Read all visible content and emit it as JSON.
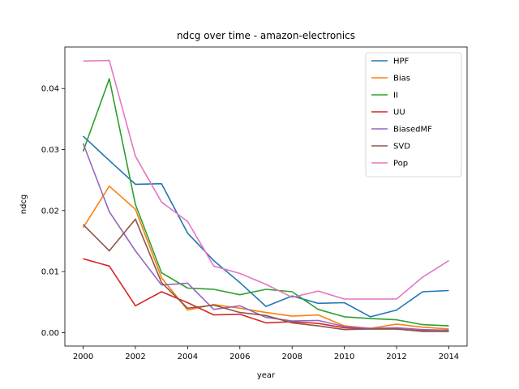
{
  "chart_data": {
    "type": "line",
    "title": "ndcg over time - amazon-electronics",
    "xlabel": "year",
    "ylabel": "ndcg",
    "x": [
      2000,
      2001,
      2002,
      2003,
      2004,
      2005,
      2006,
      2007,
      2008,
      2009,
      2010,
      2011,
      2012,
      2013,
      2014
    ],
    "xlim": [
      1999.3,
      2014.7
    ],
    "ylim": [
      -0.0022,
      0.0468
    ],
    "xticks": [
      2000,
      2002,
      2004,
      2006,
      2008,
      2010,
      2012,
      2014
    ],
    "yticks": [
      "0.00",
      "0.01",
      "0.02",
      "0.03",
      "0.04"
    ],
    "grid": false,
    "legend_position": "top-right",
    "series": [
      {
        "name": "HPF",
        "color": "#1f77b4",
        "values": [
          0.0322,
          0.0282,
          0.0243,
          0.0244,
          0.0163,
          0.0118,
          0.0082,
          0.0043,
          0.006,
          0.0048,
          0.0049,
          0.0026,
          0.0037,
          0.0067,
          0.0069
        ]
      },
      {
        "name": "Bias",
        "color": "#ff7f0e",
        "values": [
          0.0172,
          0.024,
          0.0202,
          0.009,
          0.0037,
          0.0046,
          0.004,
          0.0033,
          0.0027,
          0.0029,
          0.0011,
          0.0007,
          0.0014,
          0.0009,
          0.0006
        ]
      },
      {
        "name": "II",
        "color": "#2ca02c",
        "values": [
          0.0297,
          0.0416,
          0.021,
          0.0098,
          0.0073,
          0.0071,
          0.0062,
          0.0071,
          0.0067,
          0.0038,
          0.0026,
          0.0023,
          0.0021,
          0.0013,
          0.0011
        ]
      },
      {
        "name": "UU",
        "color": "#d62728",
        "values": [
          0.0121,
          0.0109,
          0.0044,
          0.0067,
          0.0049,
          0.0029,
          0.003,
          0.0016,
          0.0018,
          0.0015,
          0.0008,
          0.0006,
          0.0006,
          0.0003,
          0.0002
        ]
      },
      {
        "name": "BiasedMF",
        "color": "#9467bd",
        "values": [
          0.031,
          0.0198,
          0.0134,
          0.0078,
          0.0081,
          0.0038,
          0.0044,
          0.0025,
          0.0019,
          0.002,
          0.001,
          0.0007,
          0.0008,
          0.0005,
          0.0004
        ]
      },
      {
        "name": "SVD",
        "color": "#8c564b",
        "values": [
          0.0177,
          0.0134,
          0.0186,
          0.0082,
          0.004,
          0.0045,
          0.0033,
          0.0028,
          0.0016,
          0.0011,
          0.0005,
          0.0006,
          0.0006,
          0.0002,
          0.0002
        ]
      },
      {
        "name": "Pop",
        "color": "#e377c2",
        "values": [
          0.0445,
          0.0446,
          0.0289,
          0.0214,
          0.0182,
          0.0109,
          0.0097,
          0.0079,
          0.0058,
          0.0068,
          0.0055,
          0.0055,
          0.0055,
          0.0091,
          0.0118
        ]
      }
    ]
  }
}
